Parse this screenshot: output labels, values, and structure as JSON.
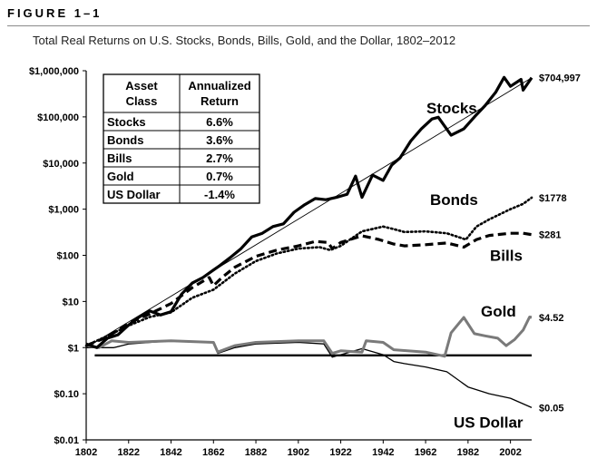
{
  "figure": {
    "label": "FIGURE 1–1",
    "caption": "Total Real Returns on U.S. Stocks, Bonds, Bills, Gold, and the Dollar, 1802–2012"
  },
  "chart_data": {
    "type": "line",
    "title": "Total Real Returns on U.S. Stocks, Bonds, Bills, Gold, and the Dollar, 1802–2012",
    "xlabel": "",
    "ylabel": "",
    "y_scale": "log",
    "xlim": [
      1802,
      2012
    ],
    "ylim": [
      0.01,
      1000000
    ],
    "x_ticks": [
      "1802",
      "1822",
      "1842",
      "1862",
      "1882",
      "1902",
      "1922",
      "1942",
      "1962",
      "1982",
      "2002"
    ],
    "y_ticks": [
      {
        "v": 1000000,
        "label": "$1,000,000"
      },
      {
        "v": 100000,
        "label": "$100,000"
      },
      {
        "v": 10000,
        "label": "$10,000"
      },
      {
        "v": 1000,
        "label": "$1,000"
      },
      {
        "v": 100,
        "label": "$100"
      },
      {
        "v": 10,
        "label": "$10"
      },
      {
        "v": 1,
        "label": "$1"
      },
      {
        "v": 0.1,
        "label": "$0.10"
      },
      {
        "v": 0.01,
        "label": "$0.01"
      }
    ],
    "grid": false,
    "series": [
      {
        "name": "Stocks",
        "style": "thick",
        "color": "#000000",
        "end_label": "$704,997",
        "points": [
          [
            1802,
            1.2
          ],
          [
            1807,
            1.0
          ],
          [
            1812,
            1.6
          ],
          [
            1817,
            1.9
          ],
          [
            1822,
            3.1
          ],
          [
            1827,
            4.6
          ],
          [
            1832,
            6.2
          ],
          [
            1837,
            5.1
          ],
          [
            1842,
            6.0
          ],
          [
            1847,
            14.5
          ],
          [
            1852,
            25
          ],
          [
            1857,
            33
          ],
          [
            1862,
            48
          ],
          [
            1865,
            60
          ],
          [
            1870,
            90
          ],
          [
            1875,
            140
          ],
          [
            1880,
            250
          ],
          [
            1885,
            300
          ],
          [
            1890,
            420
          ],
          [
            1895,
            480
          ],
          [
            1900,
            860
          ],
          [
            1905,
            1250
          ],
          [
            1910,
            1700
          ],
          [
            1915,
            1600
          ],
          [
            1920,
            1800
          ],
          [
            1925,
            2100
          ],
          [
            1929,
            5200
          ],
          [
            1932,
            1800
          ],
          [
            1937,
            5500
          ],
          [
            1942,
            4200
          ],
          [
            1946,
            9000
          ],
          [
            1950,
            13000
          ],
          [
            1955,
            30000
          ],
          [
            1960,
            55000
          ],
          [
            1965,
            90000
          ],
          [
            1968,
            98000
          ],
          [
            1974,
            40000
          ],
          [
            1980,
            55000
          ],
          [
            1985,
            100000
          ],
          [
            1990,
            175000
          ],
          [
            1995,
            340000
          ],
          [
            1999,
            720000
          ],
          [
            2002,
            460000
          ],
          [
            2007,
            650000
          ],
          [
            2008,
            380000
          ],
          [
            2012,
            704997
          ]
        ]
      },
      {
        "name": "Bonds",
        "style": "dotted",
        "color": "#000000",
        "end_label": "$1778",
        "points": [
          [
            1802,
            1.1
          ],
          [
            1812,
            1.8
          ],
          [
            1822,
            3.0
          ],
          [
            1832,
            4.6
          ],
          [
            1842,
            5.8
          ],
          [
            1852,
            12
          ],
          [
            1862,
            18
          ],
          [
            1872,
            40
          ],
          [
            1882,
            75
          ],
          [
            1892,
            110
          ],
          [
            1902,
            140
          ],
          [
            1912,
            150
          ],
          [
            1917,
            130
          ],
          [
            1922,
            160
          ],
          [
            1932,
            330
          ],
          [
            1942,
            420
          ],
          [
            1947,
            370
          ],
          [
            1952,
            320
          ],
          [
            1962,
            330
          ],
          [
            1972,
            300
          ],
          [
            1981,
            220
          ],
          [
            1986,
            420
          ],
          [
            1992,
            600
          ],
          [
            2002,
            1000
          ],
          [
            2008,
            1300
          ],
          [
            2012,
            1778
          ]
        ]
      },
      {
        "name": "Bills",
        "style": "dashed",
        "color": "#000000",
        "end_label": "$281",
        "points": [
          [
            1802,
            1.1
          ],
          [
            1812,
            1.7
          ],
          [
            1822,
            3.4
          ],
          [
            1832,
            5.4
          ],
          [
            1842,
            9
          ],
          [
            1852,
            20
          ],
          [
            1860,
            33
          ],
          [
            1862,
            22
          ],
          [
            1866,
            33
          ],
          [
            1872,
            55
          ],
          [
            1882,
            95
          ],
          [
            1892,
            130
          ],
          [
            1902,
            160
          ],
          [
            1910,
            200
          ],
          [
            1916,
            190
          ],
          [
            1918,
            140
          ],
          [
            1922,
            190
          ],
          [
            1932,
            265
          ],
          [
            1940,
            220
          ],
          [
            1947,
            175
          ],
          [
            1952,
            160
          ],
          [
            1962,
            170
          ],
          [
            1972,
            185
          ],
          [
            1980,
            150
          ],
          [
            1986,
            220
          ],
          [
            1992,
            270
          ],
          [
            2002,
            300
          ],
          [
            2008,
            300
          ],
          [
            2012,
            281
          ]
        ]
      },
      {
        "name": "Gold",
        "style": "gray",
        "color": "#7a7a7a",
        "end_label": "$4.52",
        "points": [
          [
            1802,
            1.1
          ],
          [
            1808,
            1.0
          ],
          [
            1814,
            1.4
          ],
          [
            1822,
            1.3
          ],
          [
            1842,
            1.4
          ],
          [
            1862,
            1.3
          ],
          [
            1864,
            0.8
          ],
          [
            1872,
            1.1
          ],
          [
            1882,
            1.3
          ],
          [
            1902,
            1.4
          ],
          [
            1914,
            1.4
          ],
          [
            1918,
            0.75
          ],
          [
            1922,
            0.85
          ],
          [
            1932,
            0.8
          ],
          [
            1934,
            1.4
          ],
          [
            1942,
            1.3
          ],
          [
            1947,
            0.9
          ],
          [
            1962,
            0.8
          ],
          [
            1971,
            0.65
          ],
          [
            1974,
            2.1
          ],
          [
            1980,
            4.5
          ],
          [
            1985,
            2.0
          ],
          [
            1990,
            1.8
          ],
          [
            1996,
            1.6
          ],
          [
            2000,
            1.1
          ],
          [
            2004,
            1.5
          ],
          [
            2008,
            2.4
          ],
          [
            2011,
            4.6
          ],
          [
            2012,
            4.52
          ]
        ]
      },
      {
        "name": "US Dollar",
        "style": "thin",
        "color": "#000000",
        "end_label": "$0.05",
        "points": [
          [
            1802,
            1.0
          ],
          [
            1815,
            1.0
          ],
          [
            1822,
            1.2
          ],
          [
            1842,
            1.4
          ],
          [
            1862,
            1.3
          ],
          [
            1864,
            0.75
          ],
          [
            1872,
            1.0
          ],
          [
            1882,
            1.2
          ],
          [
            1902,
            1.3
          ],
          [
            1914,
            1.2
          ],
          [
            1918,
            0.62
          ],
          [
            1922,
            0.7
          ],
          [
            1932,
            0.95
          ],
          [
            1942,
            0.7
          ],
          [
            1947,
            0.5
          ],
          [
            1952,
            0.45
          ],
          [
            1962,
            0.38
          ],
          [
            1972,
            0.3
          ],
          [
            1982,
            0.14
          ],
          [
            1992,
            0.1
          ],
          [
            2002,
            0.08
          ],
          [
            2012,
            0.05
          ]
        ]
      },
      {
        "name": "",
        "style": "reference",
        "color": "#000000",
        "points": [
          [
            1806,
            0.68
          ],
          [
            2012,
            0.68
          ]
        ]
      },
      {
        "name": "",
        "style": "trend",
        "color": "#000000",
        "points": [
          [
            1802,
            1.0
          ],
          [
            2012,
            704997
          ]
        ]
      }
    ],
    "labels": {
      "stocks": "Stocks",
      "bonds": "Bonds",
      "bills": "Bills",
      "gold": "Gold",
      "dollar": "US Dollar"
    },
    "table": {
      "header": [
        "Asset\nClass",
        "Annualized\nReturn"
      ],
      "rows": [
        [
          "Stocks",
          "6.6%"
        ],
        [
          "Bonds",
          "3.6%"
        ],
        [
          "Bills",
          "2.7%"
        ],
        [
          "Gold",
          "0.7%"
        ],
        [
          "US Dollar",
          "-1.4%"
        ]
      ]
    }
  }
}
